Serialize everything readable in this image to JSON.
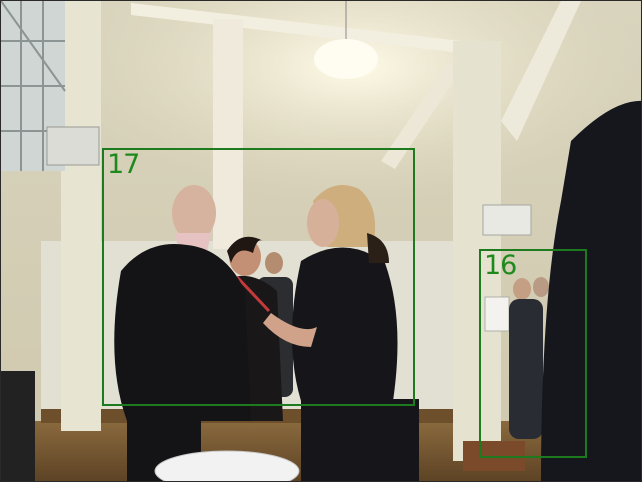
{
  "detections": [
    {
      "label": "17"
    },
    {
      "label": "16"
    }
  ],
  "colors": {
    "box_stroke": "#1e7a1e",
    "label_text": "#1e8a1e"
  }
}
